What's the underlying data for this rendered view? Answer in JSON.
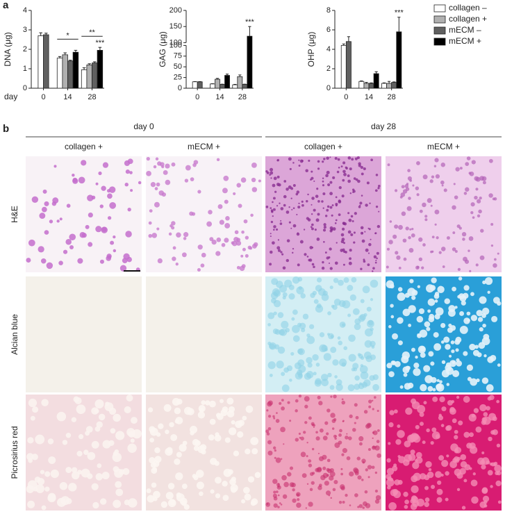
{
  "panel_a": {
    "label": "a"
  },
  "chart_data": [
    {
      "type": "bar",
      "y_label": "DNA (μg)",
      "x_label": "day",
      "categories": [
        "0",
        "14",
        "28"
      ],
      "ylim": [
        0,
        4
      ],
      "yticks": [
        0,
        1,
        2,
        3,
        4
      ],
      "legend": null,
      "series": [
        {
          "name": "collagen –",
          "color": "#ffffff",
          "values": [
            2.7,
            1.55,
            0.95
          ],
          "errors": [
            0.15,
            0.08,
            0.1
          ]
        },
        {
          "name": "collagen +",
          "color": "#b0b0b0",
          "values": [
            null,
            1.72,
            1.2
          ],
          "errors": [
            null,
            0.1,
            0.06
          ]
        },
        {
          "name": "mECM –",
          "color": "#606060",
          "values": [
            2.75,
            1.4,
            1.3
          ],
          "errors": [
            0.08,
            0.04,
            0.06
          ]
        },
        {
          "name": "mECM +",
          "color": "#000000",
          "values": [
            null,
            1.85,
            1.95
          ],
          "errors": [
            null,
            0.1,
            0.15
          ]
        }
      ],
      "annotations": [
        {
          "text": "*",
          "category": "14",
          "bracket": true
        },
        {
          "text": "**",
          "category": "28",
          "bracket": true
        },
        {
          "text": "***",
          "category": "28",
          "bracket": false
        }
      ]
    },
    {
      "type": "bar",
      "y_label": "GAG (μg)",
      "categories": [
        "0",
        "14",
        "28"
      ],
      "ylim": [
        0,
        200
      ],
      "ybreak": 100,
      "yticks": [
        0,
        25,
        50,
        75,
        100
      ],
      "yticks_upper": [
        100,
        150,
        200
      ],
      "legend": null,
      "series": [
        {
          "name": "collagen –",
          "color": "#ffffff",
          "values": [
            15,
            10,
            8
          ],
          "errors": [
            0.5,
            0.5,
            1
          ]
        },
        {
          "name": "collagen +",
          "color": "#b0b0b0",
          "values": [
            null,
            21,
            27
          ],
          "errors": [
            null,
            2,
            4
          ]
        },
        {
          "name": "mECM –",
          "color": "#606060",
          "values": [
            15,
            9,
            9
          ],
          "errors": [
            0.5,
            0.5,
            0.5
          ]
        },
        {
          "name": "mECM +",
          "color": "#000000",
          "values": [
            null,
            30,
            120
          ],
          "errors": [
            null,
            3,
            30
          ]
        }
      ],
      "annotations": [
        {
          "text": "***",
          "category": "28",
          "bracket": false
        }
      ]
    },
    {
      "type": "bar",
      "y_label": "OHP (μg)",
      "categories": [
        "0",
        "14",
        "28"
      ],
      "ylim": [
        0,
        8
      ],
      "yticks": [
        0,
        2,
        4,
        6,
        8
      ],
      "legend": "right",
      "series": [
        {
          "name": "collagen –",
          "color": "#ffffff",
          "values": [
            4.4,
            0.7,
            0.5
          ],
          "errors": [
            0.15,
            0.05,
            0.05
          ]
        },
        {
          "name": "collagen +",
          "color": "#b0b0b0",
          "values": [
            null,
            0.5,
            0.5
          ],
          "errors": [
            null,
            0.1,
            0.2
          ]
        },
        {
          "name": "mECM –",
          "color": "#606060",
          "values": [
            4.8,
            0.5,
            0.6
          ],
          "errors": [
            0.5,
            0.05,
            0.05
          ]
        },
        {
          "name": "mECM +",
          "color": "#000000",
          "values": [
            null,
            1.5,
            5.8
          ],
          "errors": [
            null,
            0.2,
            1.5
          ]
        }
      ],
      "annotations": [
        {
          "text": "***",
          "category": "28",
          "bracket": false
        }
      ]
    }
  ],
  "panel_b": {
    "label": "b",
    "groups": [
      "day 0",
      "day 28"
    ],
    "columns": [
      "collagen +",
      "mECM +",
      "collagen +",
      "mECM +"
    ],
    "rows": [
      "H&E",
      "Alcian blue",
      "Picrosirius red"
    ]
  }
}
